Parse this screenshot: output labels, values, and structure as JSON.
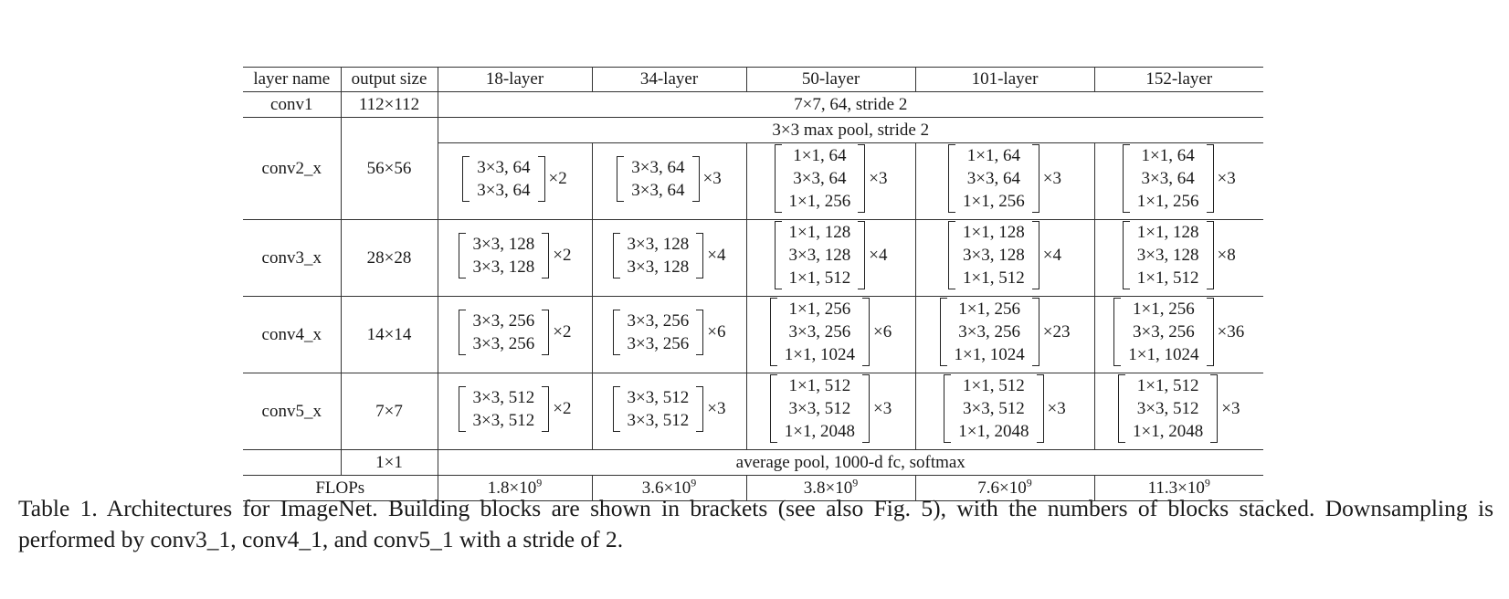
{
  "header": [
    "layer name",
    "output size",
    "18-layer",
    "34-layer",
    "50-layer",
    "101-layer",
    "152-layer"
  ],
  "conv1": {
    "name": "conv1",
    "size": "112×112",
    "text": "7×7, 64, stride 2"
  },
  "pool": {
    "text": "3×3 max pool, stride 2"
  },
  "stages": [
    {
      "name": "conv2_x",
      "size": "56×56",
      "blocks": [
        {
          "lines": [
            "3×3, 64",
            "3×3, 64"
          ],
          "mult": "×2"
        },
        {
          "lines": [
            "3×3, 64",
            "3×3, 64"
          ],
          "mult": "×3"
        },
        {
          "lines": [
            "1×1, 64",
            "3×3, 64",
            "1×1, 256"
          ],
          "mult": "×3"
        },
        {
          "lines": [
            "1×1, 64",
            "3×3, 64",
            "1×1, 256"
          ],
          "mult": "×3"
        },
        {
          "lines": [
            "1×1, 64",
            "3×3, 64",
            "1×1, 256"
          ],
          "mult": "×3"
        }
      ]
    },
    {
      "name": "conv3_x",
      "size": "28×28",
      "blocks": [
        {
          "lines": [
            "3×3, 128",
            "3×3, 128"
          ],
          "mult": "×2"
        },
        {
          "lines": [
            "3×3, 128",
            "3×3, 128"
          ],
          "mult": "×4"
        },
        {
          "lines": [
            "1×1, 128",
            "3×3, 128",
            "1×1, 512"
          ],
          "mult": "×4"
        },
        {
          "lines": [
            "1×1, 128",
            "3×3, 128",
            "1×1, 512"
          ],
          "mult": "×4"
        },
        {
          "lines": [
            "1×1, 128",
            "3×3, 128",
            "1×1, 512"
          ],
          "mult": "×8"
        }
      ]
    },
    {
      "name": "conv4_x",
      "size": "14×14",
      "blocks": [
        {
          "lines": [
            "3×3, 256",
            "3×3, 256"
          ],
          "mult": "×2"
        },
        {
          "lines": [
            "3×3, 256",
            "3×3, 256"
          ],
          "mult": "×6"
        },
        {
          "lines": [
            "1×1, 256",
            "3×3, 256",
            "1×1, 1024"
          ],
          "mult": "×6"
        },
        {
          "lines": [
            "1×1, 256",
            "3×3, 256",
            "1×1, 1024"
          ],
          "mult": "×23"
        },
        {
          "lines": [
            "1×1, 256",
            "3×3, 256",
            "1×1, 1024"
          ],
          "mult": "×36"
        }
      ]
    },
    {
      "name": "conv5_x",
      "size": "7×7",
      "blocks": [
        {
          "lines": [
            "3×3, 512",
            "3×3, 512"
          ],
          "mult": "×2"
        },
        {
          "lines": [
            "3×3, 512",
            "3×3, 512"
          ],
          "mult": "×3"
        },
        {
          "lines": [
            "1×1, 512",
            "3×3, 512",
            "1×1, 2048"
          ],
          "mult": "×3"
        },
        {
          "lines": [
            "1×1, 512",
            "3×3, 512",
            "1×1, 2048"
          ],
          "mult": "×3"
        },
        {
          "lines": [
            "1×1, 512",
            "3×3, 512",
            "1×1, 2048"
          ],
          "mult": "×3"
        }
      ]
    }
  ],
  "final": {
    "size": "1×1",
    "text": "average pool, 1000-d fc, softmax"
  },
  "flops": {
    "label": "FLOPs",
    "base": [
      "1.8",
      "3.6",
      "3.8",
      "7.6",
      "11.3"
    ],
    "mantissa_sep": "×10",
    "exponent": "9"
  },
  "caption": "Table 1. Architectures for ImageNet. Building blocks are shown in brackets (see also Fig. 5), with the numbers of blocks stacked. Downsampling is performed by conv3_1, conv4_1, and conv5_1 with a stride of 2."
}
